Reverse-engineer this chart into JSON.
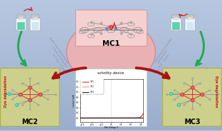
{
  "bg_top": "#b8c8e0",
  "bg_bottom": "#8899b8",
  "mc1_ellipse_color": "#f0b0b0",
  "mc1_ellipse_edge": "#d08888",
  "mc1_rect_color": "#f5d0d0",
  "mc1_rect_edge": "#cc9999",
  "mc1_label": "MC1",
  "mc2_box_color": "#cdd08a",
  "mc2_box_edge": "#aab050",
  "mc2_label": "MC2",
  "mc3_box_color": "#cdd08a",
  "mc3_box_edge": "#aab050",
  "mc3_label": "MC3",
  "schottky_label": "schottky device",
  "vial_green": "#44cc99",
  "vial_light": "#c8e8f0",
  "vial_body": "#f0f8ff",
  "vial_cap": "#dddddd",
  "arrow_red": "#cc2222",
  "arrow_red_dark": "#aa1111",
  "arrow_green": "#22aa55",
  "text_gray": "#888899",
  "dye_red": "#cc1111",
  "label_fontsize": 5.5,
  "small_fontsize": 3.2
}
